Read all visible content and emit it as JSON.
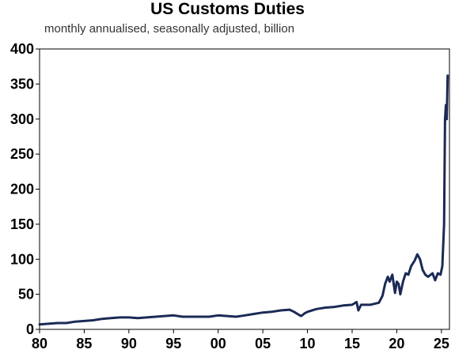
{
  "chart_data": {
    "type": "line",
    "title": "US Customs Duties",
    "subtitle": "monthly annualised, seasonally adjusted, billion",
    "xlabel": "",
    "ylabel": "",
    "xlim": [
      1980,
      2025.9
    ],
    "ylim": [
      0,
      400
    ],
    "y_ticks": [
      0,
      50,
      100,
      150,
      200,
      250,
      300,
      350,
      400
    ],
    "x_ticks": [
      1980,
      1985,
      1990,
      1995,
      2000,
      2005,
      2010,
      2015,
      2020,
      2025
    ],
    "x_tick_labels": [
      "80",
      "85",
      "90",
      "95",
      "00",
      "05",
      "10",
      "15",
      "20",
      "25"
    ],
    "grid": false,
    "legend": "none",
    "line_color": "#1b2a55",
    "series": [
      {
        "x": [
          1980,
          1981,
          1982,
          1983,
          1984,
          1985,
          1986,
          1987,
          1988,
          1989,
          1990,
          1991,
          1992,
          1993,
          1994,
          1995,
          1996,
          1997,
          1998,
          1999,
          2000,
          2001,
          2002,
          2003,
          2004,
          2005,
          2006,
          2007,
          2008,
          2008.5,
          2009,
          2009.3,
          2009.7,
          2010,
          2011,
          2012,
          2013,
          2014,
          2015,
          2015.5,
          2015.7,
          2016,
          2017,
          2018,
          2018.4,
          2018.7,
          2019,
          2019.2,
          2019.5,
          2019.8,
          2020,
          2020.2,
          2020.4,
          2020.7,
          2021,
          2021.3,
          2021.6,
          2022,
          2022.3,
          2022.6,
          2022.9,
          2023.2,
          2023.5,
          2024,
          2024.3,
          2024.6,
          2024.9,
          2025.1,
          2025.3,
          2025.4,
          2025.5,
          2025.6,
          2025.7
        ],
        "y": [
          7,
          8,
          9,
          9,
          11,
          12,
          13,
          15,
          16,
          17,
          17,
          16,
          17,
          18,
          19,
          20,
          18,
          18,
          18,
          18,
          20,
          19,
          18,
          20,
          22,
          24,
          25,
          27,
          28,
          25,
          21,
          19,
          23,
          25,
          29,
          31,
          32,
          34,
          35,
          39,
          27,
          35,
          35,
          38,
          48,
          65,
          75,
          68,
          78,
          52,
          68,
          65,
          50,
          68,
          80,
          78,
          90,
          98,
          107,
          100,
          85,
          78,
          75,
          80,
          70,
          80,
          78,
          90,
          150,
          300,
          320,
          300,
          362
        ]
      }
    ]
  }
}
